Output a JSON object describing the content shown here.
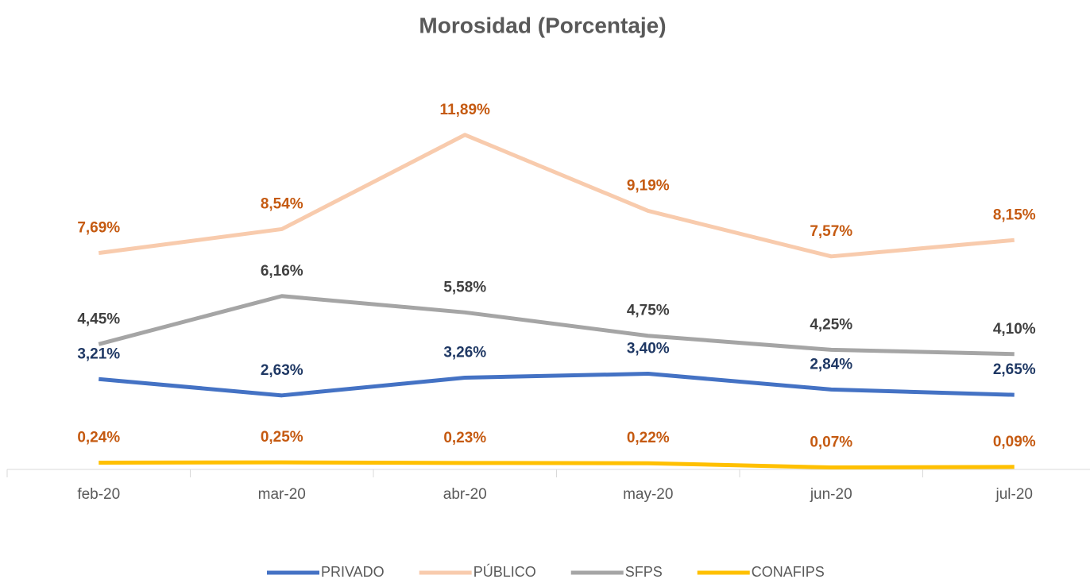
{
  "chart_data": {
    "type": "line",
    "title": "Morosidad (Porcentaje)",
    "categories": [
      "feb-20",
      "mar-20",
      "abr-20",
      "may-20",
      "jun-20",
      "jul-20"
    ],
    "ylim": [
      0,
      14
    ],
    "legend": "bottom",
    "series": [
      {
        "name": "PRIVADO",
        "color": "#4472c4",
        "label_color": "#1f3864",
        "values": [
          3.21,
          2.63,
          3.26,
          3.4,
          2.84,
          2.65
        ],
        "value_labels": [
          "3,21%",
          "2,63%",
          "3,26%",
          "3,40%",
          "2,84%",
          "2,65%"
        ]
      },
      {
        "name": "PÚBLICO",
        "color": "#f8cbad",
        "label_color": "#c55a11",
        "values": [
          7.69,
          8.54,
          11.89,
          9.19,
          7.57,
          8.15
        ],
        "value_labels": [
          "7,69%",
          "8,54%",
          "11,89%",
          "9,19%",
          "7,57%",
          "8,15%"
        ]
      },
      {
        "name": "SFPS",
        "color": "#a5a5a5",
        "label_color": "#404040",
        "values": [
          4.45,
          6.16,
          5.58,
          4.75,
          4.25,
          4.1
        ],
        "value_labels": [
          "4,45%",
          "6,16%",
          "5,58%",
          "4,75%",
          "4,25%",
          "4,10%"
        ]
      },
      {
        "name": "CONAFIPS",
        "color": "#ffc000",
        "label_color": "#c55a11",
        "values": [
          0.24,
          0.25,
          0.23,
          0.22,
          0.07,
          0.09
        ],
        "value_labels": [
          "0,24%",
          "0,25%",
          "0,23%",
          "0,22%",
          "0,07%",
          "0,09%"
        ]
      }
    ]
  }
}
